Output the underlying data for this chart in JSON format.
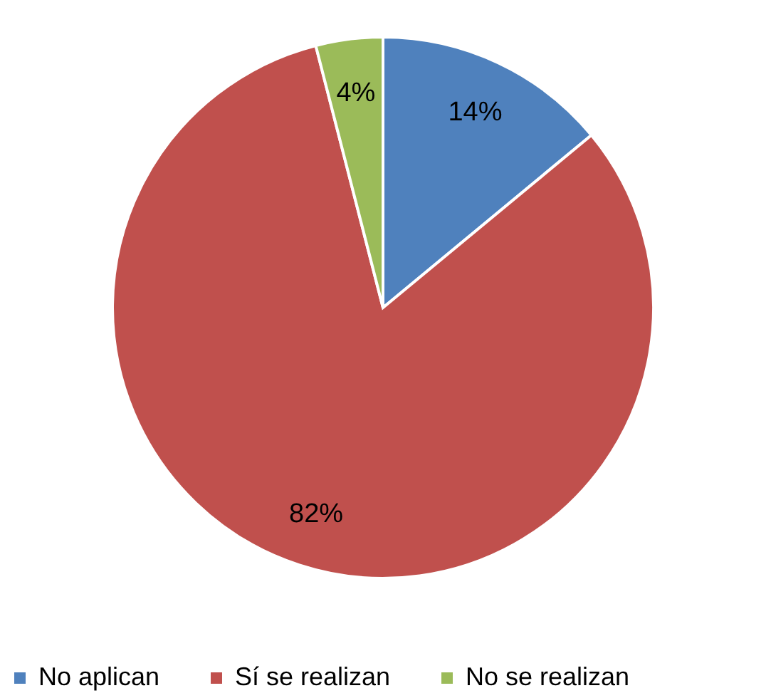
{
  "chart_data": {
    "type": "pie",
    "categories": [
      "No aplican",
      "Sí se realizan",
      "No se realizan"
    ],
    "values": [
      14,
      82,
      4
    ],
    "colors": [
      "#4f81bd",
      "#c0504d",
      "#9bbb59"
    ],
    "value_labels": [
      "14%",
      "82%",
      "4%"
    ],
    "legend": "bottom"
  }
}
